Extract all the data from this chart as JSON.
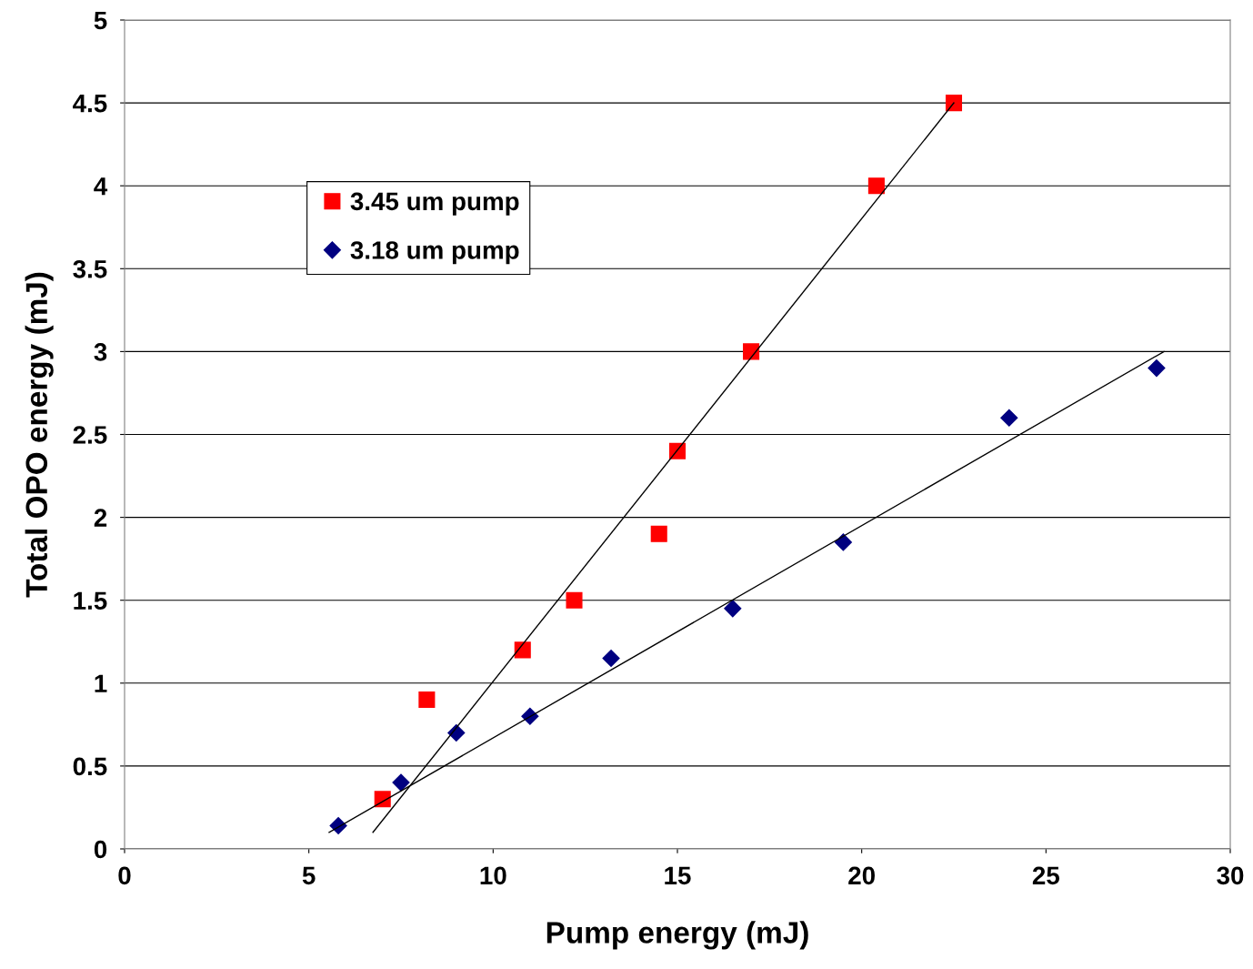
{
  "chart_data": {
    "type": "scatter",
    "xlabel": "Pump energy (mJ)",
    "ylabel": "Total OPO energy (mJ)",
    "xlim": [
      0,
      30
    ],
    "xticks": [
      0,
      5,
      10,
      15,
      20,
      25,
      30
    ],
    "ylim": [
      0,
      5
    ],
    "yticks": [
      0,
      0.5,
      1,
      1.5,
      2,
      2.5,
      3,
      3.5,
      4,
      4.5,
      5
    ],
    "grid": "y",
    "legend": "top left",
    "series": [
      {
        "name": "3.45 um pump",
        "color": "#ff0000",
        "marker": "square",
        "x": [
          7.0,
          8.2,
          10.8,
          12.2,
          14.5,
          15.0,
          17.0,
          20.4,
          22.5
        ],
        "values": [
          0.3,
          0.9,
          1.2,
          1.5,
          1.9,
          2.4,
          3.0,
          4.0,
          4.5
        ]
      },
      {
        "name": "3.18 um pump",
        "color": "#000080",
        "marker": "diamond",
        "x": [
          5.8,
          7.5,
          9.0,
          11.0,
          13.2,
          16.5,
          19.5,
          24.0,
          28.0
        ],
        "values": [
          0.14,
          0.4,
          0.7,
          0.8,
          1.15,
          1.45,
          1.85,
          2.6,
          2.9
        ]
      },
      {
        "type": "line",
        "color": "#000000",
        "marker": "none",
        "x": [
          6.74,
          22.5
        ],
        "values": [
          0.1,
          4.5
        ]
      },
      {
        "type": "line",
        "color": "#000000",
        "marker": "none",
        "x": [
          5.55,
          28.2
        ],
        "values": [
          0.1,
          3.0
        ]
      }
    ]
  }
}
